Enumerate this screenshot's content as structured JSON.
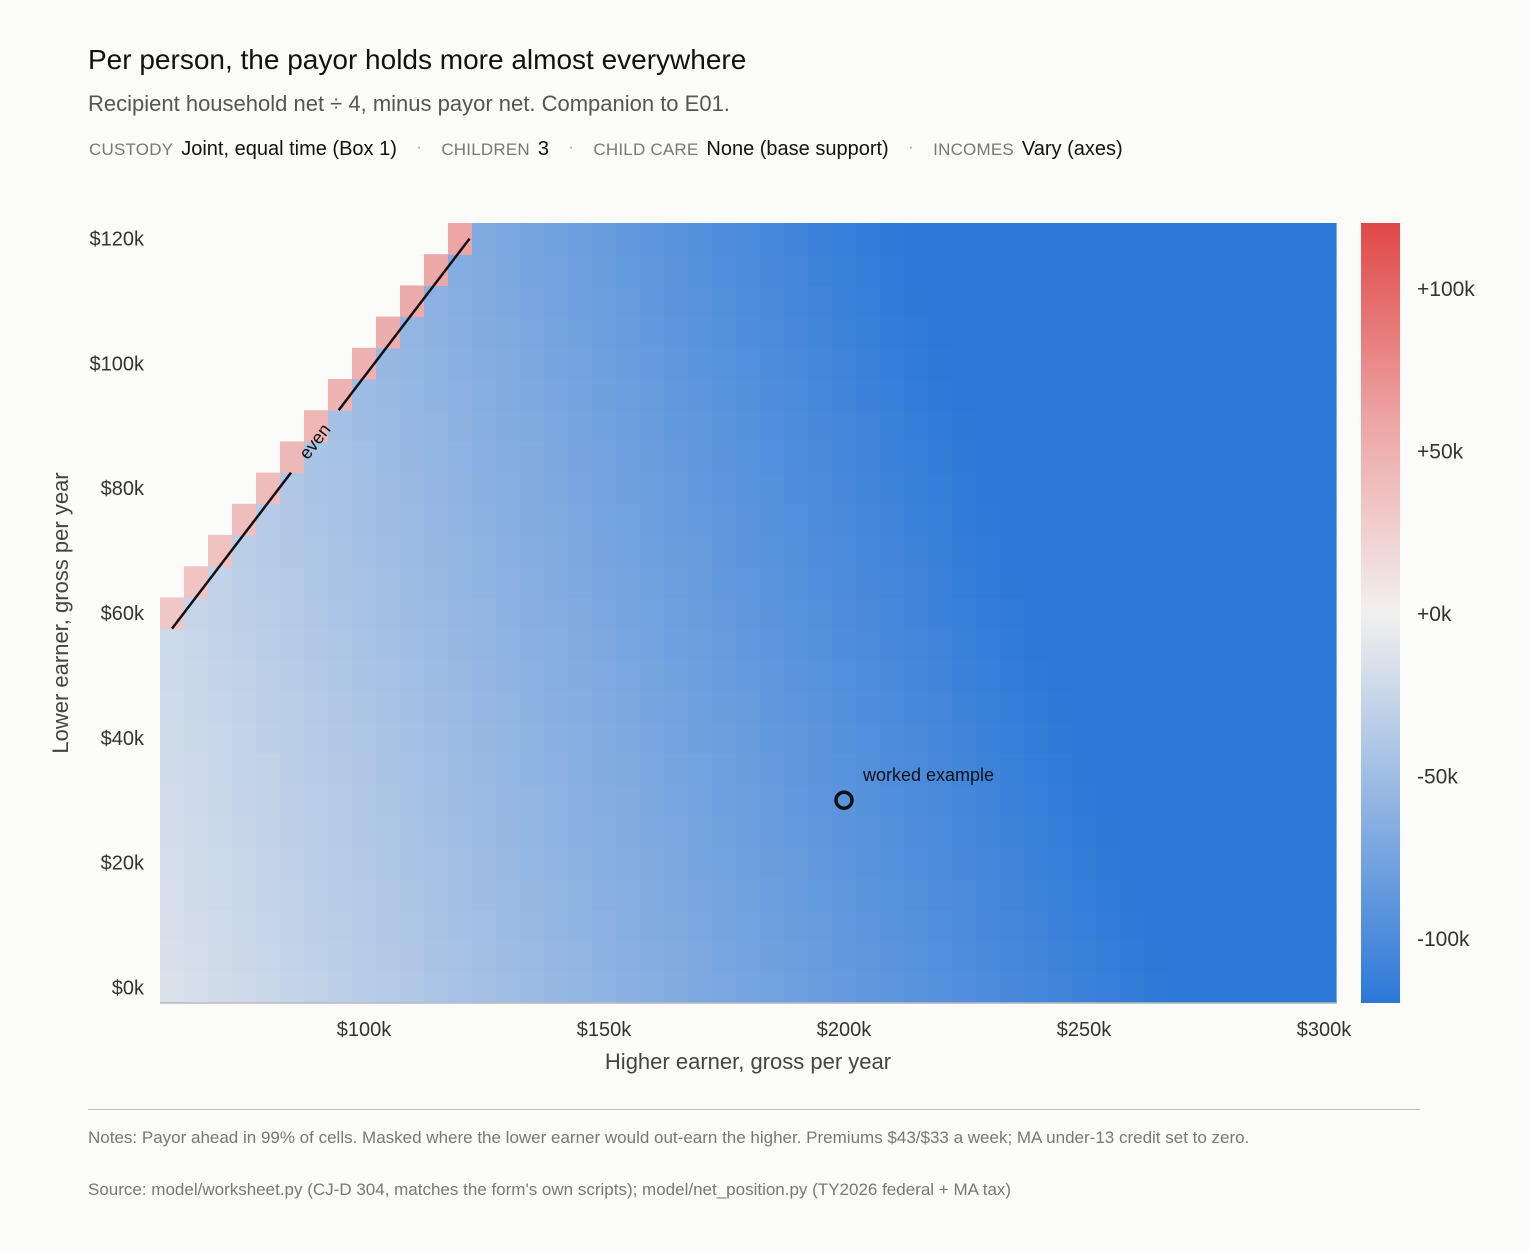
{
  "title": "Per person, the payor holds more almost everywhere",
  "subtitle": "Recipient household net ÷ 4, minus payor net. Companion to E01.",
  "meta": [
    {
      "key": "CUSTODY",
      "value": "Joint, equal time (Box 1)"
    },
    {
      "key": "CHILDREN",
      "value": "3"
    },
    {
      "key": "CHILD CARE",
      "value": "None (base support)"
    },
    {
      "key": "INCOMES",
      "value": "Vary (axes)"
    }
  ],
  "meta_separator": "·",
  "notes": "Notes: Payor ahead in 99% of cells. Masked where the lower earner would out-earn the higher. Premiums $43/$33 a week; MA under-13 credit set to zero.",
  "source": "Source: model/worksheet.py (CJ-D 304, matches the form's own scripts); model/net_position.py (TY2026 federal + MA tax)",
  "colors": {
    "negative": "#2b78d8",
    "zero": "#f2f0ee",
    "positive": "#e04848"
  },
  "chart_data": {
    "type": "heatmap",
    "xlabel": "Higher earner, gross per year",
    "ylabel": "Lower earner, gross per year",
    "x_range": [
      57500,
      302500
    ],
    "y_range": [
      -2500,
      122500
    ],
    "x_step": 5000,
    "y_step": 5000,
    "x_ticks": [
      {
        "value": 100000,
        "label": "$100k"
      },
      {
        "value": 150000,
        "label": "$150k"
      },
      {
        "value": 200000,
        "label": "$200k"
      },
      {
        "value": 250000,
        "label": "$250k"
      },
      {
        "value": 300000,
        "label": "$300k"
      }
    ],
    "y_ticks": [
      {
        "value": 0,
        "label": "$0k"
      },
      {
        "value": 20000,
        "label": "$20k"
      },
      {
        "value": 40000,
        "label": "$40k"
      },
      {
        "value": 60000,
        "label": "$60k"
      },
      {
        "value": 80000,
        "label": "$80k"
      },
      {
        "value": 100000,
        "label": "$100k"
      },
      {
        "value": 120000,
        "label": "$120k"
      }
    ],
    "colorbar": {
      "range": [
        -120000,
        120000
      ],
      "ticks": [
        {
          "value": 100000,
          "label": "+100k"
        },
        {
          "value": 50000,
          "label": "+50k"
        },
        {
          "value": 0,
          "label": "+0k"
        },
        {
          "value": -50000,
          "label": "-50k"
        },
        {
          "value": -100000,
          "label": "-100k"
        }
      ]
    },
    "mask": "cells where lower earner income exceeds higher earner income are blank",
    "value_model": {
      "description": "approximate per-person difference (recipient net ÷ 4 minus payor net) read from the color scale",
      "base": 0,
      "per_higher_dollar": -0.5,
      "per_lower_dollar": -0.18,
      "diagonal_value": 32000
    },
    "corner_values": [
      {
        "x": 60000,
        "y": 0,
        "value": -16000
      },
      {
        "x": 300000,
        "y": 0,
        "value": -110000
      },
      {
        "x": 300000,
        "y": 120000,
        "value": -118000
      },
      {
        "x": 125000,
        "y": 120000,
        "value": -68000
      },
      {
        "x": 60000,
        "y": 55000,
        "value": -28000
      }
    ],
    "break_even_line": {
      "label": "even",
      "points": [
        [
          60000,
          57500
        ],
        [
          122000,
          120000
        ]
      ]
    },
    "worked_example": {
      "label": "worked example",
      "x": 200000,
      "y": 30000
    }
  }
}
